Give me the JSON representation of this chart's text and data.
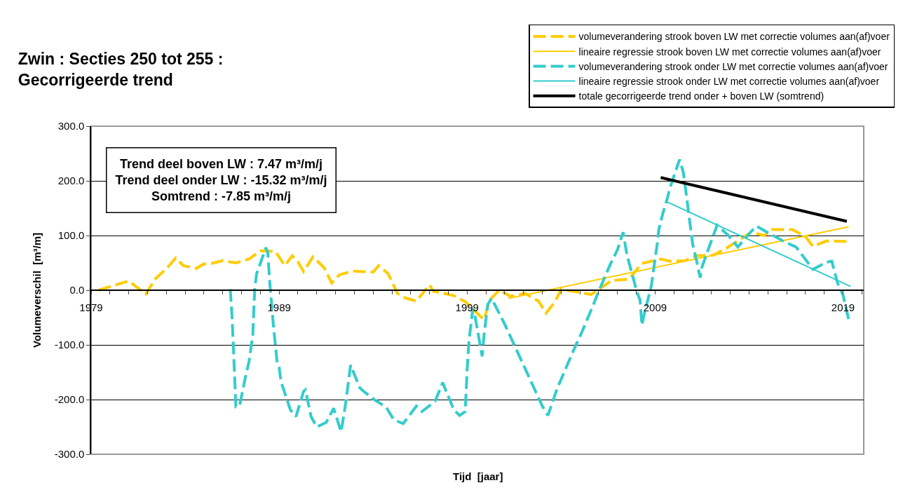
{
  "chart_data": {
    "type": "line",
    "title": "Zwin : Secties 250 tot 255 :\nGecorrigeerde trend",
    "xlabel": "Tijd  [jaar]",
    "ylabel": "Volumeverschil  [m³/m]",
    "annotations": [
      "Trend deel boven LW : 7.47 m³/m/j\nTrend deel onder LW : -15.32 m³/m/j\nSomtrend : -7.85 m³/m/j"
    ],
    "xlim": [
      1979,
      2020.1
    ],
    "xticks": [
      1979,
      {
        "value": 1980,
        "label": null
      },
      {
        "value": 1981,
        "label": null
      },
      {
        "value": 1982,
        "label": null
      },
      {
        "value": 1983,
        "label": null
      },
      {
        "value": 1984,
        "label": null
      },
      {
        "value": 1985,
        "label": null
      },
      {
        "value": 1986,
        "label": null
      },
      {
        "value": 1987,
        "label": null
      },
      {
        "value": 1988,
        "label": null
      },
      1989,
      {
        "value": 1990,
        "label": null
      },
      {
        "value": 1991,
        "label": null
      },
      {
        "value": 1992,
        "label": null
      },
      {
        "value": 1993,
        "label": null
      },
      {
        "value": 1994,
        "label": null
      },
      {
        "value": 1995,
        "label": null
      },
      {
        "value": 1996,
        "label": null
      },
      {
        "value": 1997,
        "label": null
      },
      {
        "value": 1998,
        "label": null
      },
      1999,
      {
        "value": 2000,
        "label": null
      },
      {
        "value": 2001,
        "label": null
      },
      {
        "value": 2002,
        "label": null
      },
      {
        "value": 2003,
        "label": null
      },
      {
        "value": 2004,
        "label": null
      },
      {
        "value": 2005,
        "label": null
      },
      {
        "value": 2006,
        "label": null
      },
      {
        "value": 2007,
        "label": null
      },
      {
        "value": 2008,
        "label": null
      },
      2009,
      {
        "value": 2010,
        "label": null
      },
      {
        "value": 2011,
        "label": null
      },
      {
        "value": 2012,
        "label": null
      },
      {
        "value": 2013,
        "label": null
      },
      {
        "value": 2014,
        "label": null
      },
      {
        "value": 2015,
        "label": null
      },
      {
        "value": 2016,
        "label": null
      },
      {
        "value": 2017,
        "label": null
      },
      {
        "value": 2018,
        "label": null
      },
      2019,
      {
        "value": 2020,
        "label": null
      }
    ],
    "ylim": [
      -300,
      300
    ],
    "yticks": [
      {
        "value": -300,
        "label": "-300.0"
      },
      {
        "value": -200,
        "label": "-200.0"
      },
      {
        "value": -100,
        "label": "-100.0"
      },
      {
        "value": 0,
        "label": "0.0"
      },
      {
        "value": 100,
        "label": "100.0"
      },
      {
        "value": 200,
        "label": "200.0"
      },
      {
        "value": 300,
        "label": "300.0"
      }
    ],
    "grid": "y",
    "legend": "top right",
    "marker": "none",
    "series": [
      {
        "name": "volumeverandering strook boven LW met correctie volumes aan(af)voer",
        "color": "#ffcc00",
        "line_style": "dashed",
        "x": [
          1979.4,
          1981.0,
          1981.9,
          1982.4,
          1983.1,
          1983.5,
          1983.9,
          1984.6,
          1985.0,
          1985.3,
          1986.0,
          1986.7,
          1987.4,
          1988.0,
          1988.8,
          1989.3,
          1989.7,
          1990.0,
          1990.3,
          1990.8,
          1991.4,
          1991.8,
          1992.2,
          1992.9,
          1994.0,
          1994.3,
          1994.8,
          1995.3,
          1995.6,
          1996.3,
          1997.0,
          1997.2,
          1997.8,
          1998.3,
          1998.9,
          1999.9,
          2000.2,
          2000.7,
          2001.3,
          2002.1,
          2002.8,
          2003.2,
          2003.7,
          2004.0,
          2005.6,
          2006.7,
          2007.6,
          2008.3,
          2009.3,
          2009.8,
          2010.6,
          2011.2,
          2012.1,
          2012.8,
          2013.4,
          2014.1,
          2014.8,
          2015.2,
          2016.3,
          2017.0,
          2017.4,
          2018.1,
          2019.2
        ],
        "values": [
          0,
          17,
          -7,
          20,
          43,
          59,
          45,
          40,
          48,
          48,
          54,
          50,
          57,
          72,
          71,
          45,
          63,
          52,
          34,
          61,
          41,
          13,
          28,
          35,
          33,
          45,
          30,
          -6,
          -13,
          -20,
          10,
          -2,
          -6,
          -10,
          -21,
          -54,
          -18,
          0,
          -11,
          -6,
          -20,
          -42,
          -20,
          2,
          -8,
          18,
          20,
          49,
          57,
          53,
          54,
          63,
          64,
          77,
          90,
          106,
          100,
          111,
          111,
          98,
          80,
          90,
          89
        ]
      },
      {
        "name": "lineaire regressie strook boven LW met correctie volumes aan(af)voer",
        "color": "#ffcc00",
        "line_style": "solid",
        "x": [
          2001.2,
          2019.3
        ],
        "values": [
          -15,
          116
        ]
      },
      {
        "name": "volumeverandering strook onder LW met correctie volumes aan(af)voer",
        "color": "#33cccc",
        "line_style": "dashed",
        "x": [
          1986.4,
          1986.5,
          1986.6,
          1986.7,
          1986.9,
          1987.2,
          1987.4,
          1987.6,
          1987.7,
          1987.8,
          1988.3,
          1988.4,
          1988.5,
          1988.7,
          1988.9,
          1989.0,
          1989.1,
          1989.6,
          1989.9,
          1990.3,
          1990.4,
          1990.7,
          1991.0,
          1991.5,
          1991.9,
          1992.3,
          1992.5,
          1992.6,
          1992.8,
          1993.3,
          1993.5,
          1994.1,
          1994.7,
          1995.1,
          1995.6,
          1996.3,
          1996.6,
          1997.3,
          1997.7,
          1997.9,
          1998.3,
          1998.6,
          1998.9,
          1999.0,
          1999.1,
          1999.2,
          1999.3,
          1999.4,
          1999.6,
          1999.8,
          1999.9,
          2000.1,
          2000.3,
          2001.0,
          2002.0,
          2003.0,
          2003.3,
          2003.8,
          2004.7,
          2005.1,
          2005.7,
          2006.0,
          2006.6,
          2007.0,
          2007.3,
          2007.5,
          2007.9,
          2008.0,
          2008.2,
          2008.3,
          2008.4,
          2008.8,
          2009.1,
          2009.2,
          2009.4,
          2009.6,
          2009.8,
          2010.3,
          2010.5,
          2010.7,
          2010.8,
          2011.0,
          2011.2,
          2011.4,
          2011.5,
          2011.8,
          2012.3,
          2012.9,
          2013.4,
          2014.1,
          2014.4,
          2015.8,
          2016.5,
          2017.4,
          2018.1,
          2018.4,
          2018.7,
          2019.0,
          2019.3
        ],
        "values": [
          2,
          -51,
          -131,
          -213,
          -211,
          -160,
          -130,
          -82,
          2,
          30,
          78,
          68,
          15,
          -66,
          -134,
          -141,
          -167,
          -219,
          -231,
          -185,
          -182,
          -231,
          -250,
          -242,
          -216,
          -259,
          -216,
          -191,
          -137,
          -179,
          -185,
          -201,
          -214,
          -237,
          -244,
          -212,
          -222,
          -203,
          -169,
          -186,
          -219,
          -229,
          -222,
          -146,
          -92,
          -64,
          -34,
          -44,
          -82,
          -121,
          -82,
          -26,
          -15,
          -62,
          -137,
          -212,
          -229,
          -179,
          -107,
          -77,
          -28,
          -2,
          46,
          74,
          106,
          65,
          14,
          0,
          -18,
          -64,
          -47,
          8,
          81,
          111,
          139,
          162,
          188,
          239,
          216,
          165,
          137,
          84,
          55,
          23,
          43,
          72,
          119,
          100,
          79,
          107,
          117,
          90,
          79,
          38,
          51,
          53,
          14,
          -9,
          -54
        ]
      },
      {
        "name": "lineaire regressie strook onder LW met correctie volumes aan(af)voer",
        "color": "#33cccc",
        "line_style": "solid",
        "x": [
          2009.6,
          2019.4
        ],
        "values": [
          162,
          7
        ]
      },
      {
        "name": "totale gecorrigeerde trend onder + boven LW (somtrend)",
        "color": "#000000",
        "line_style": "solid",
        "x": [
          2009.3,
          2019.2
        ],
        "values": [
          206,
          126
        ]
      }
    ]
  }
}
